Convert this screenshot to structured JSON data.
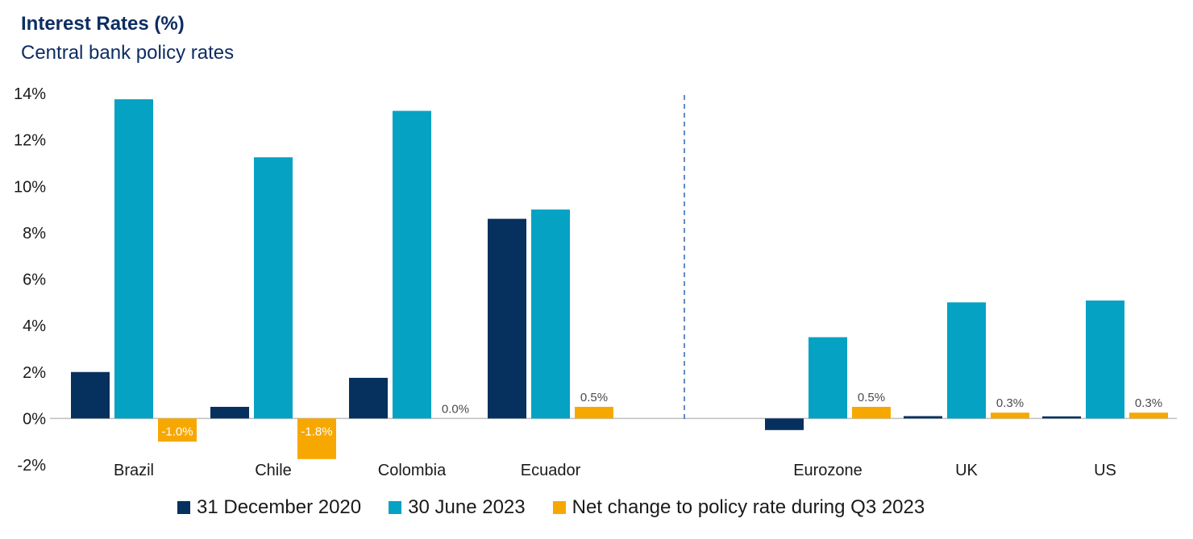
{
  "title": "Interest Rates (%)",
  "subtitle": "Central bank policy rates",
  "colors": {
    "dec2020": "#06305e",
    "jun2023": "#05a2c4",
    "net": "#f7a800",
    "divider": "#2e66b0",
    "axis": "#bfbfbf"
  },
  "chart_data": {
    "type": "bar",
    "title": "Interest Rates (%)",
    "subtitle": "Central bank policy rates",
    "categories": [
      "Brazil",
      "Chile",
      "Colombia",
      "Ecuador",
      "Eurozone",
      "UK",
      "US"
    ],
    "series": [
      {
        "name": "31 December 2020",
        "values": [
          2.0,
          0.5,
          1.75,
          8.6,
          -0.5,
          0.1,
          0.09
        ]
      },
      {
        "name": "30 June 2023",
        "values": [
          13.75,
          11.25,
          13.25,
          9.0,
          3.5,
          5.0,
          5.08
        ]
      },
      {
        "name": "Net change to policy rate during Q3 2023",
        "values": [
          -1.0,
          -1.75,
          0.0,
          0.5,
          0.5,
          0.25,
          0.25
        ],
        "labels": [
          "-1.0%",
          "-1.8%",
          "0.0%",
          "0.5%",
          "0.5%",
          "0.3%",
          "0.3%"
        ]
      }
    ],
    "yticks": [
      "14%",
      "12%",
      "10%",
      "8%",
      "6%",
      "4%",
      "2%",
      "0%",
      "-2%"
    ],
    "ytick_values": [
      14,
      12,
      10,
      8,
      6,
      4,
      2,
      0,
      -2
    ],
    "ylim": [
      -2,
      14
    ],
    "grid": false,
    "legend": "bottom",
    "divider": "dashed vertical line between Ecuador and Eurozone"
  }
}
